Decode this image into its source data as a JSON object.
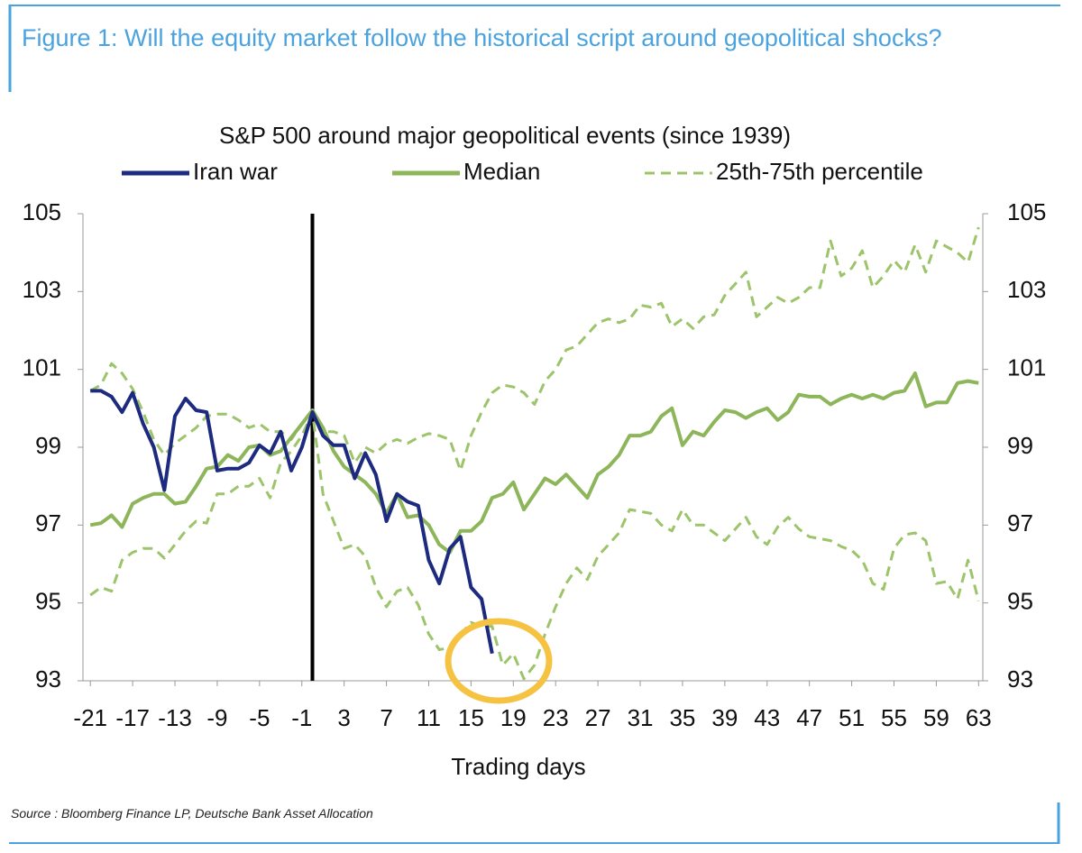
{
  "caption": "Figure 1: Will the equity market follow the historical script around geopolitical shocks?",
  "source": "Source : Bloomberg Finance LP, Deutsche Bank Asset Allocation",
  "chart_data": {
    "type": "line",
    "title": "S&P 500 around major geopolitical events (since 1939)",
    "x_label": "Trading days",
    "x": [
      -21,
      -20,
      -19,
      -18,
      -17,
      -16,
      -15,
      -14,
      -13,
      -12,
      -11,
      -10,
      -9,
      -8,
      -7,
      -6,
      -5,
      -4,
      -3,
      -2,
      -1,
      0,
      1,
      2,
      3,
      4,
      5,
      6,
      7,
      8,
      9,
      10,
      11,
      12,
      13,
      14,
      15,
      16,
      17,
      18,
      19,
      20,
      21,
      22,
      23,
      24,
      25,
      26,
      27,
      28,
      29,
      30,
      31,
      32,
      33,
      34,
      35,
      36,
      37,
      38,
      39,
      40,
      41,
      42,
      43,
      44,
      45,
      46,
      47,
      48,
      49,
      50,
      51,
      52,
      53,
      54,
      55,
      56,
      57,
      58,
      59,
      60,
      61,
      62,
      63
    ],
    "xlim": [
      -21.7,
      63.4
    ],
    "xticks": [
      -21,
      -17,
      -13,
      -9,
      -5,
      -1,
      3,
      7,
      11,
      15,
      19,
      23,
      27,
      31,
      35,
      39,
      43,
      47,
      51,
      55,
      59,
      63
    ],
    "ylim": [
      93,
      105
    ],
    "yticks": [
      93,
      95,
      97,
      99,
      101,
      103,
      105
    ],
    "event_day": 0,
    "series": [
      {
        "name": "Iran war",
        "color": "#1c2a80",
        "values": [
          100.45,
          100.45,
          100.3,
          99.9,
          100.4,
          99.6,
          99.0,
          97.9,
          99.8,
          100.25,
          99.95,
          99.9,
          98.4,
          98.45,
          98.45,
          98.6,
          99.05,
          98.85,
          99.4,
          98.4,
          99.0,
          99.9,
          99.3,
          99.05,
          99.05,
          98.2,
          98.85,
          98.3,
          97.1,
          97.8,
          97.6,
          97.5,
          96.1,
          95.5,
          96.4,
          96.7,
          95.4,
          95.1,
          93.7,
          null,
          null,
          null,
          null,
          null,
          null,
          null,
          null,
          null,
          null,
          null,
          null,
          null,
          null,
          null,
          null,
          null,
          null,
          null,
          null,
          null,
          null,
          null,
          null,
          null,
          null,
          null,
          null,
          null,
          null,
          null,
          null,
          null,
          null,
          null,
          null,
          null,
          null,
          null,
          null,
          null,
          null,
          null,
          null,
          null,
          null
        ]
      },
      {
        "name": "Median",
        "color": "#8db55a",
        "values": [
          97.0,
          97.05,
          97.25,
          96.95,
          97.55,
          97.7,
          97.8,
          97.8,
          97.55,
          97.6,
          98.0,
          98.45,
          98.5,
          98.8,
          98.65,
          99.0,
          99.05,
          98.8,
          98.9,
          99.25,
          99.6,
          99.95,
          99.5,
          98.9,
          98.5,
          98.3,
          98.1,
          97.8,
          97.3,
          97.8,
          97.2,
          97.25,
          97.0,
          96.5,
          96.3,
          96.85,
          96.85,
          97.1,
          97.7,
          97.8,
          98.1,
          97.4,
          97.8,
          98.2,
          98.05,
          98.3,
          98.0,
          97.7,
          98.3,
          98.5,
          98.8,
          99.3,
          99.3,
          99.4,
          99.8,
          100.0,
          99.05,
          99.4,
          99.3,
          99.65,
          99.95,
          99.9,
          99.75,
          99.9,
          100.0,
          99.7,
          99.9,
          100.35,
          100.3,
          100.3,
          100.1,
          100.25,
          100.35,
          100.25,
          100.35,
          100.25,
          100.4,
          100.45,
          100.9,
          100.05,
          100.15,
          100.15,
          100.65,
          100.7,
          100.65
        ]
      },
      {
        "name": "25th-75th percentile",
        "color": "#9cc46a",
        "dashed": true,
        "upper": [
          100.45,
          100.6,
          101.15,
          100.9,
          100.5,
          99.9,
          99.2,
          98.8,
          99.1,
          99.3,
          99.5,
          99.8,
          99.85,
          99.85,
          99.7,
          99.5,
          99.6,
          99.4,
          99.4,
          99.2,
          99.6,
          99.9,
          99.4,
          99.4,
          99.3,
          98.6,
          99.0,
          98.85,
          99.1,
          99.2,
          99.1,
          99.25,
          99.35,
          99.3,
          99.2,
          98.4,
          99.3,
          99.9,
          100.4,
          100.6,
          100.55,
          100.4,
          100.1,
          100.7,
          101.0,
          101.5,
          101.6,
          101.9,
          102.2,
          102.3,
          102.2,
          102.3,
          102.65,
          102.6,
          102.7,
          102.1,
          102.3,
          102.05,
          102.35,
          102.4,
          102.9,
          103.2,
          103.5,
          102.35,
          102.6,
          102.85,
          102.7,
          102.85,
          103.1,
          103.1,
          104.3,
          103.4,
          103.6,
          104.05,
          103.1,
          103.4,
          103.8,
          103.5,
          104.2,
          103.5,
          104.3,
          104.15,
          104.0,
          103.75,
          104.65
        ],
        "lower": [
          95.2,
          95.4,
          95.3,
          96.1,
          96.3,
          96.4,
          96.4,
          96.15,
          96.5,
          96.85,
          97.1,
          97.05,
          97.8,
          97.8,
          98.0,
          98.0,
          98.2,
          97.7,
          98.6,
          98.9,
          99.3,
          99.9,
          97.8,
          97.1,
          96.4,
          96.5,
          96.2,
          95.4,
          94.9,
          95.3,
          95.4,
          94.95,
          94.2,
          93.8,
          93.85,
          94.2,
          94.5,
          94.4,
          94.4,
          93.4,
          93.7,
          93.05,
          93.4,
          94.2,
          94.9,
          95.5,
          95.9,
          95.6,
          96.2,
          96.5,
          96.8,
          97.4,
          97.35,
          97.3,
          97.0,
          96.85,
          97.4,
          97.0,
          97.0,
          96.8,
          96.6,
          96.9,
          97.2,
          96.7,
          96.5,
          96.95,
          97.2,
          96.9,
          96.7,
          96.65,
          96.6,
          96.45,
          96.35,
          96.1,
          95.5,
          95.35,
          96.4,
          96.75,
          96.8,
          96.6,
          95.5,
          95.55,
          95.1,
          96.1,
          95.05
        ]
      }
    ]
  }
}
